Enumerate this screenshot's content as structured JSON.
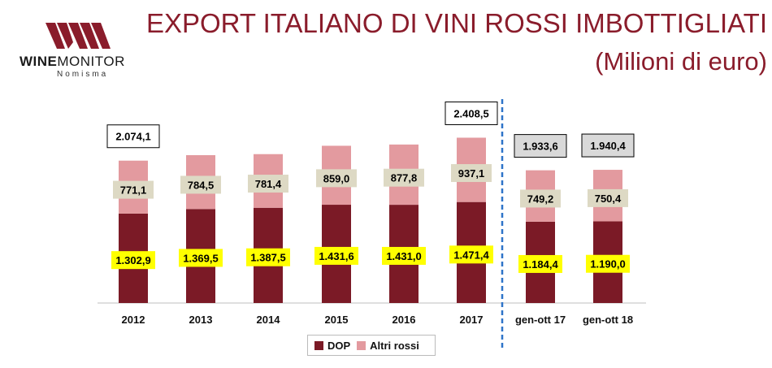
{
  "header": {
    "title": "EXPORT ITALIANO DI VINI ROSSI IMBOTTIGLIATI",
    "subtitle": "(Milioni di euro)",
    "logo_text_bold": "WINE",
    "logo_text": "MONITOR",
    "logo_sub": "Nomisma"
  },
  "colors": {
    "dop": "#7b1a26",
    "altri": "#e39a9f",
    "title": "#8a1c2b",
    "divider": "#2e74c9",
    "dop_label_bg": "#ffff00",
    "altri_label_bg": "#ddd9c4",
    "total_box_grey": "#d9d9d9"
  },
  "chart_data": {
    "type": "bar",
    "stacked": true,
    "categories": [
      "2012",
      "2013",
      "2014",
      "2015",
      "2016",
      "2017",
      "gen-ott 17",
      "gen-ott 18"
    ],
    "series": [
      {
        "name": "DOP",
        "values": [
          1302.9,
          1369.5,
          1387.5,
          1431.6,
          1431.0,
          1471.4,
          1184.4,
          1190.0
        ],
        "labels": [
          "1.302,9",
          "1.369,5",
          "1.387,5",
          "1.431,6",
          "1.431,0",
          "1.471,4",
          "1.184,4",
          "1.190,0"
        ]
      },
      {
        "name": "Altri rossi",
        "values": [
          771.1,
          784.5,
          781.4,
          859.0,
          877.8,
          937.1,
          749.2,
          750.4
        ],
        "labels": [
          "771,1",
          "784,5",
          "781,4",
          "859,0",
          "877,8",
          "937,1",
          "749,2",
          "750,4"
        ]
      }
    ],
    "totals": [
      {
        "index": 0,
        "value": 2074.1,
        "label": "2.074,1",
        "style": "white"
      },
      {
        "index": 5,
        "value": 2408.5,
        "label": "2.408,5",
        "style": "white"
      },
      {
        "index": 6,
        "value": 1933.6,
        "label": "1.933,6",
        "style": "grey"
      },
      {
        "index": 7,
        "value": 1940.4,
        "label": "1.940,4",
        "style": "grey"
      }
    ],
    "divider_after": "2017",
    "legend_position": "bottom"
  }
}
